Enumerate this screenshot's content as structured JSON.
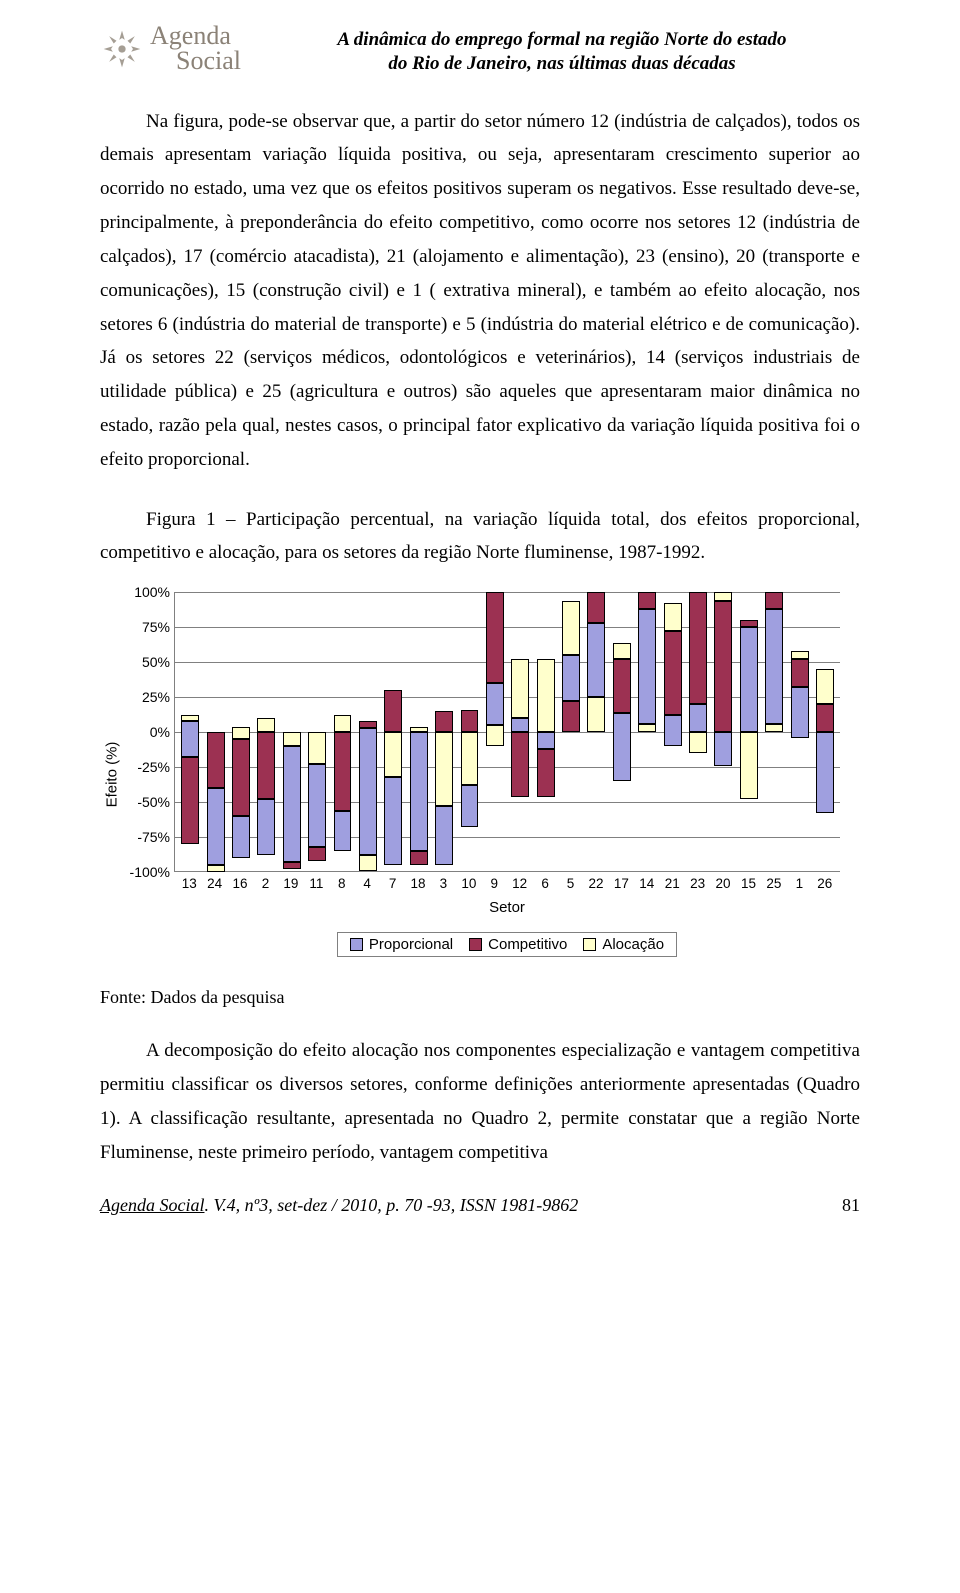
{
  "header": {
    "logo_line1": "Agenda",
    "logo_line2": "Social",
    "title_line1": "A dinâmica do emprego formal na região Norte do estado",
    "title_line2": "do Rio de Janeiro, nas últimas duas décadas"
  },
  "paragraphs": {
    "p1": "Na figura, pode-se observar que, a partir do setor número 12 (indústria de calçados), todos os demais apresentam variação líquida positiva, ou seja, apresentaram crescimento superior ao ocorrido no estado, uma vez que os efeitos positivos superam os negativos. Esse resultado deve-se, principalmente, à preponderância do efeito competitivo, como ocorre nos setores 12 (indústria de calçados), 17 (comércio atacadista), 21 (alojamento e alimentação), 23 (ensino), 20 (transporte e comunicações), 15 (construção civil) e 1 ( extrativa mineral), e também ao efeito alocação, nos setores 6 (indústria do material de transporte) e 5 (indústria do material elétrico e de comunicação). Já os setores 22 (serviços médicos, odontológicos e veterinários), 14 (serviços industriais de utilidade pública) e 25 (agricultura e outros) são aqueles que apresentaram maior dinâmica no estado, razão pela qual, nestes casos, o principal fator explicativo da variação líquida positiva foi o efeito proporcional.",
    "caption": "Figura 1 – Participação percentual, na variação líquida total, dos efeitos proporcional, competitivo e alocação, para os setores da região Norte fluminense, 1987-1992.",
    "source": "Fonte: Dados da pesquisa",
    "p2": "A decomposição do efeito alocação nos componentes especialização e vantagem competitiva permitiu classificar os diversos setores, conforme definições anteriormente apresentadas (Quadro 1). A classificação resultante, apresentada no Quadro 2, permite constatar que a região Norte Fluminense, neste primeiro período, vantagem competitiva"
  },
  "chart": {
    "type": "stacked-bar-diverging",
    "ylabel": "Efeito (%)",
    "xlabel": "Setor",
    "ylim_min": -100,
    "ylim_max": 100,
    "ytick_step": 25,
    "yticks": [
      "100%",
      "75%",
      "50%",
      "25%",
      "0%",
      "-25%",
      "-50%",
      "-75%",
      "-100%"
    ],
    "grid_color": "#808080",
    "background_color": "#ffffff",
    "bar_border_color": "#000000",
    "colors": {
      "proporcional": "#9f9fdf",
      "competitivo": "#9c3152",
      "alocacao": "#ffffcc"
    },
    "legend": [
      {
        "label": "Proporcional",
        "key": "proporcional"
      },
      {
        "label": "Competitivo",
        "key": "competitivo"
      },
      {
        "label": "Alocação",
        "key": "alocacao"
      }
    ],
    "categories": [
      "13",
      "24",
      "16",
      "2",
      "19",
      "11",
      "8",
      "4",
      "7",
      "18",
      "3",
      "10",
      "9",
      "12",
      "6",
      "5",
      "22",
      "17",
      "14",
      "21",
      "23",
      "20",
      "15",
      "25",
      "1",
      "26"
    ],
    "series": [
      {
        "proporcional": [
          -18,
          8
        ],
        "competitivo": [
          -80,
          -18
        ],
        "alocacao": [
          8,
          12
        ]
      },
      {
        "proporcional": [
          -95,
          -40
        ],
        "competitivo": [
          -40,
          0
        ],
        "alocacao": [
          -100,
          -95
        ]
      },
      {
        "proporcional": [
          -90,
          -60
        ],
        "competitivo": [
          -60,
          -5
        ],
        "alocacao": [
          -5,
          4
        ]
      },
      {
        "proporcional": [
          -88,
          -48
        ],
        "competitivo": [
          -48,
          0
        ],
        "alocacao": [
          0,
          10
        ]
      },
      {
        "proporcional": [
          -93,
          -10
        ],
        "competitivo": [
          -98,
          -93
        ],
        "alocacao": [
          -10,
          0
        ]
      },
      {
        "proporcional": [
          -82,
          -23
        ],
        "competitivo": [
          -92,
          -82
        ],
        "alocacao": [
          -23,
          0
        ]
      },
      {
        "proporcional": [
          -85,
          -56
        ],
        "competitivo": [
          -56,
          0
        ],
        "alocacao": [
          0,
          12
        ]
      },
      {
        "proporcional": [
          -88,
          3
        ],
        "competitivo": [
          3,
          8
        ],
        "alocacao": [
          -99,
          -88
        ]
      },
      {
        "proporcional": [
          -95,
          -32
        ],
        "competitivo": [
          0,
          30
        ],
        "alocacao": [
          -32,
          0
        ]
      },
      {
        "proporcional": [
          -85,
          0
        ],
        "competitivo": [
          -95,
          -85
        ],
        "alocacao": [
          0,
          4
        ]
      },
      {
        "proporcional": [
          -95,
          -53
        ],
        "competitivo": [
          0,
          15
        ],
        "alocacao": [
          -53,
          0
        ]
      },
      {
        "proporcional": [
          -68,
          -38
        ],
        "competitivo": [
          0,
          16
        ],
        "alocacao": [
          -38,
          0
        ]
      },
      {
        "proporcional": [
          5,
          35
        ],
        "competitivo": [
          35,
          100
        ],
        "alocacao": [
          -10,
          5
        ]
      },
      {
        "proporcional": [
          0,
          10
        ],
        "competitivo": [
          -46,
          0
        ],
        "alocacao": [
          10,
          52
        ]
      },
      {
        "proporcional": [
          -12,
          0
        ],
        "competitivo": [
          -46,
          -12
        ],
        "alocacao": [
          0,
          52
        ]
      },
      {
        "proporcional": [
          22,
          55
        ],
        "competitivo": [
          0,
          22
        ],
        "alocacao": [
          55,
          94
        ]
      },
      {
        "proporcional": [
          25,
          78
        ],
        "competitivo": [
          78,
          100
        ],
        "alocacao": [
          0,
          25
        ]
      },
      {
        "proporcional": [
          -35,
          14
        ],
        "competitivo": [
          14,
          52
        ],
        "alocacao": [
          52,
          64
        ]
      },
      {
        "proporcional": [
          6,
          88
        ],
        "competitivo": [
          88,
          100
        ],
        "alocacao": [
          0,
          6
        ]
      },
      {
        "proporcional": [
          -10,
          12
        ],
        "competitivo": [
          12,
          72
        ],
        "alocacao": [
          72,
          92
        ]
      },
      {
        "proporcional": [
          0,
          20
        ],
        "competitivo": [
          20,
          100
        ],
        "alocacao": [
          -15,
          0
        ]
      },
      {
        "proporcional": [
          -24,
          0
        ],
        "competitivo": [
          0,
          94
        ],
        "alocacao": [
          94,
          100
        ]
      },
      {
        "proporcional": [
          0,
          75
        ],
        "competitivo": [
          75,
          80
        ],
        "alocacao": [
          -48,
          0
        ]
      },
      {
        "proporcional": [
          6,
          88
        ],
        "competitivo": [
          88,
          100
        ],
        "alocacao": [
          0,
          6
        ]
      },
      {
        "proporcional": [
          -4,
          32
        ],
        "competitivo": [
          32,
          52
        ],
        "alocacao": [
          52,
          58
        ]
      },
      {
        "proporcional": [
          -58,
          0
        ],
        "competitivo": [
          0,
          20
        ],
        "alocacao": [
          20,
          45
        ]
      }
    ]
  },
  "footer": {
    "ref_label": "Agenda Social",
    "ref_rest": ". V.4, nº3, set-dez / 2010, p. 70 -93, ISSN 1981-9862",
    "page_no": "81"
  }
}
